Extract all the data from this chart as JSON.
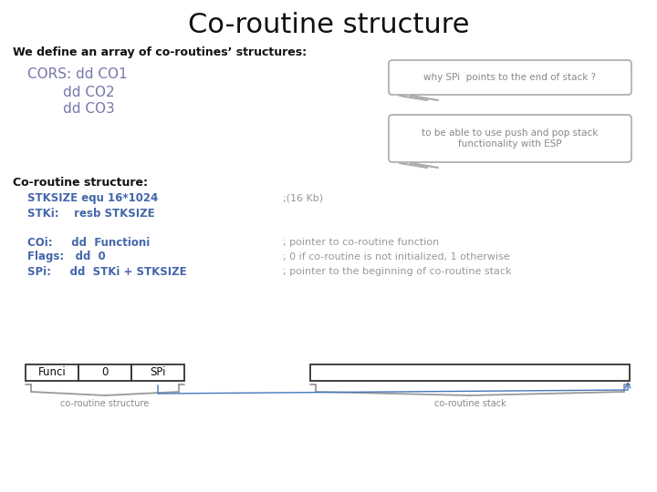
{
  "title": "Co-routine structure",
  "title_fontsize": 22,
  "bg_color": "#ffffff",
  "text_color_black": "#111111",
  "text_color_blue_cors": "#7777aa",
  "text_color_blue_code": "#4466aa",
  "text_color_gray_comment": "#999999",
  "text_color_callout": "#888888",
  "text_color_callout_border": "#aaaaaa",
  "subtitle": "We define an array of co-routines’ structures:",
  "cors_line1": "CORS: dd CO1",
  "cors_line2": "        dd CO2",
  "cors_line3": "        dd CO3",
  "callout1": "why SPi  points to the end of stack ?",
  "callout2": "to be able to use push and pop stack\nfunctionality with ESP",
  "section2": "Co-routine structure:",
  "code_lines_blue": [
    "STKSIZE equ 16*1024",
    "STKi:    resb STKSIZE",
    "",
    "COi:     dd  Functioni",
    "Flags:   dd  0",
    "SPi:     dd  STKi + STKSIZE"
  ],
  "code_lines_gray": [
    ";(16 Kb)",
    "",
    "",
    "; pointer to co-routine function",
    "; 0 if co-routine is not initialized, 1 otherwise",
    "; pointer to the beginning of co-routine stack"
  ],
  "box_labels": [
    "Funci",
    "0",
    "SPi"
  ],
  "label_coroutine_structure": "co-routine structure",
  "label_coroutine_stack": "co-routine stack",
  "arrow_color": "#4477bb"
}
